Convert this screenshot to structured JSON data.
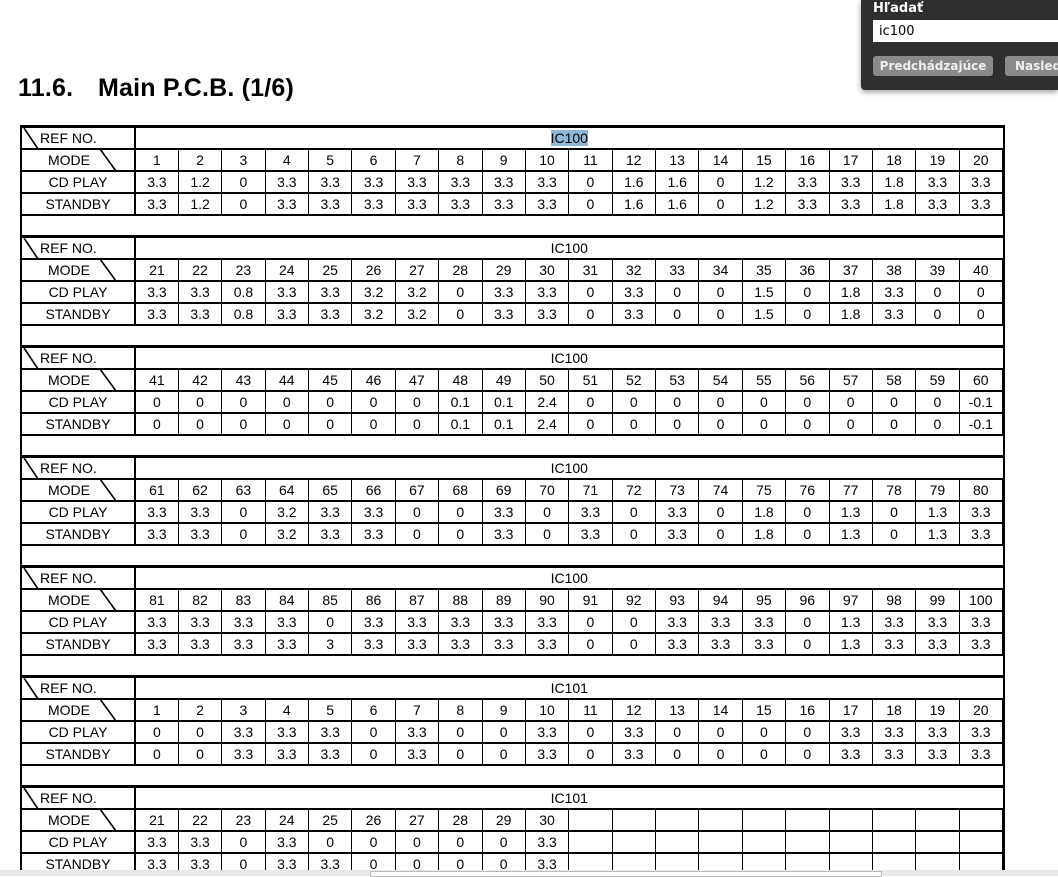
{
  "title": {
    "number": "11.6.",
    "text": "Main P.C.B. (1/6)"
  },
  "table_labels": {
    "ref_no": "REF NO.",
    "mode": "MODE",
    "cd_play": "CD PLAY",
    "standby": "STANDBY"
  },
  "blocks": [
    {
      "ref": "IC100",
      "highlighted": true,
      "modes": [
        "1",
        "2",
        "3",
        "4",
        "5",
        "6",
        "7",
        "8",
        "9",
        "10",
        "11",
        "12",
        "13",
        "14",
        "15",
        "16",
        "17",
        "18",
        "19",
        "20"
      ],
      "cd_play": [
        "3.3",
        "1.2",
        "0",
        "3.3",
        "3.3",
        "3.3",
        "3.3",
        "3.3",
        "3.3",
        "3.3",
        "0",
        "1.6",
        "1.6",
        "0",
        "1.2",
        "3.3",
        "3.3",
        "1.8",
        "3.3",
        "3.3"
      ],
      "standby": [
        "3.3",
        "1.2",
        "0",
        "3.3",
        "3.3",
        "3.3",
        "3.3",
        "3.3",
        "3.3",
        "3.3",
        "0",
        "1.6",
        "1.6",
        "0",
        "1.2",
        "3.3",
        "3.3",
        "1.8",
        "3.3",
        "3.3"
      ]
    },
    {
      "ref": "IC100",
      "modes": [
        "21",
        "22",
        "23",
        "24",
        "25",
        "26",
        "27",
        "28",
        "29",
        "30",
        "31",
        "32",
        "33",
        "34",
        "35",
        "36",
        "37",
        "38",
        "39",
        "40"
      ],
      "cd_play": [
        "3.3",
        "3.3",
        "0.8",
        "3.3",
        "3.3",
        "3.2",
        "3.2",
        "0",
        "3.3",
        "3.3",
        "0",
        "3.3",
        "0",
        "0",
        "1.5",
        "0",
        "1.8",
        "3.3",
        "0",
        "0"
      ],
      "standby": [
        "3.3",
        "3.3",
        "0.8",
        "3.3",
        "3.3",
        "3.2",
        "3.2",
        "0",
        "3.3",
        "3.3",
        "0",
        "3.3",
        "0",
        "0",
        "1.5",
        "0",
        "1.8",
        "3.3",
        "0",
        "0"
      ]
    },
    {
      "ref": "IC100",
      "modes": [
        "41",
        "42",
        "43",
        "44",
        "45",
        "46",
        "47",
        "48",
        "49",
        "50",
        "51",
        "52",
        "53",
        "54",
        "55",
        "56",
        "57",
        "58",
        "59",
        "60"
      ],
      "cd_play": [
        "0",
        "0",
        "0",
        "0",
        "0",
        "0",
        "0",
        "0.1",
        "0.1",
        "2.4",
        "0",
        "0",
        "0",
        "0",
        "0",
        "0",
        "0",
        "0",
        "0",
        "-0.1"
      ],
      "standby": [
        "0",
        "0",
        "0",
        "0",
        "0",
        "0",
        "0",
        "0.1",
        "0.1",
        "2.4",
        "0",
        "0",
        "0",
        "0",
        "0",
        "0",
        "0",
        "0",
        "0",
        "-0.1"
      ]
    },
    {
      "ref": "IC100",
      "modes": [
        "61",
        "62",
        "63",
        "64",
        "65",
        "66",
        "67",
        "68",
        "69",
        "70",
        "71",
        "72",
        "73",
        "74",
        "75",
        "76",
        "77",
        "78",
        "79",
        "80"
      ],
      "cd_play": [
        "3.3",
        "3.3",
        "0",
        "3.2",
        "3.3",
        "3.3",
        "0",
        "0",
        "3.3",
        "0",
        "3.3",
        "0",
        "3.3",
        "0",
        "1.8",
        "0",
        "1.3",
        "0",
        "1.3",
        "3.3"
      ],
      "standby": [
        "3.3",
        "3.3",
        "0",
        "3.2",
        "3.3",
        "3.3",
        "0",
        "0",
        "3.3",
        "0",
        "3.3",
        "0",
        "3.3",
        "0",
        "1.8",
        "0",
        "1.3",
        "0",
        "1.3",
        "3.3"
      ]
    },
    {
      "ref": "IC100",
      "modes": [
        "81",
        "82",
        "83",
        "84",
        "85",
        "86",
        "87",
        "88",
        "89",
        "90",
        "91",
        "92",
        "93",
        "94",
        "95",
        "96",
        "97",
        "98",
        "99",
        "100"
      ],
      "cd_play": [
        "3.3",
        "3.3",
        "3.3",
        "3.3",
        "0",
        "3.3",
        "3.3",
        "3.3",
        "3.3",
        "3.3",
        "0",
        "0",
        "3.3",
        "3.3",
        "3.3",
        "0",
        "1.3",
        "3.3",
        "3.3",
        "3.3"
      ],
      "standby": [
        "3.3",
        "3.3",
        "3.3",
        "3.3",
        "3",
        "3.3",
        "3.3",
        "3.3",
        "3.3",
        "3.3",
        "0",
        "0",
        "3.3",
        "3.3",
        "3.3",
        "0",
        "1.3",
        "3.3",
        "3.3",
        "3.3"
      ]
    },
    {
      "ref": "IC101",
      "modes": [
        "1",
        "2",
        "3",
        "4",
        "5",
        "6",
        "7",
        "8",
        "9",
        "10",
        "11",
        "12",
        "13",
        "14",
        "15",
        "16",
        "17",
        "18",
        "19",
        "20"
      ],
      "cd_play": [
        "0",
        "0",
        "3.3",
        "3.3",
        "3.3",
        "0",
        "3.3",
        "0",
        "0",
        "3.3",
        "0",
        "3.3",
        "0",
        "0",
        "0",
        "0",
        "3.3",
        "3.3",
        "3.3",
        "3.3"
      ],
      "standby": [
        "0",
        "0",
        "3.3",
        "3.3",
        "3.3",
        "0",
        "3.3",
        "0",
        "0",
        "3.3",
        "0",
        "3.3",
        "0",
        "0",
        "0",
        "0",
        "3.3",
        "3.3",
        "3.3",
        "3.3"
      ]
    },
    {
      "ref": "IC101",
      "modes": [
        "21",
        "22",
        "23",
        "24",
        "25",
        "26",
        "27",
        "28",
        "29",
        "30",
        "",
        "",
        "",
        "",
        "",
        "",
        "",
        "",
        "",
        ""
      ],
      "cd_play": [
        "3.3",
        "3.3",
        "0",
        "3.3",
        "0",
        "0",
        "0",
        "0",
        "0",
        "3.3",
        "",
        "",
        "",
        "",
        "",
        "",
        "",
        "",
        "",
        ""
      ],
      "standby": [
        "3.3",
        "3.3",
        "0",
        "3.3",
        "3.3",
        "0",
        "0",
        "0",
        "0",
        "3.3",
        "",
        "",
        "",
        "",
        "",
        "",
        "",
        "",
        "",
        ""
      ]
    }
  ],
  "find_panel": {
    "heading": "Hľadať",
    "query": "ic100",
    "prev_label": "Predchádzajúce",
    "next_label": "Nasledujúce"
  }
}
